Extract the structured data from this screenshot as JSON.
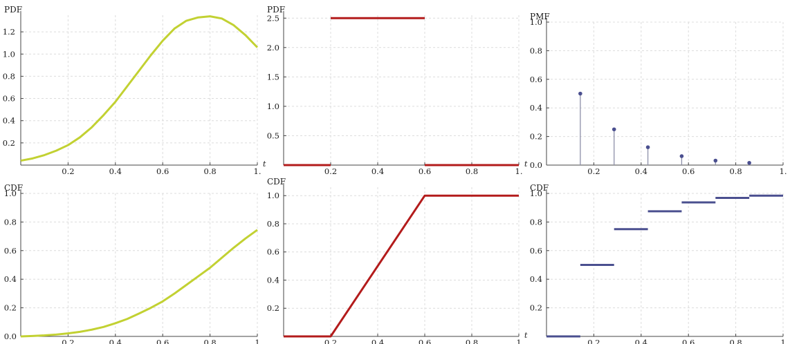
{
  "colors": {
    "green": "#c2d132",
    "red": "#b31b1b",
    "blue": "#4a4f8f",
    "stem": "#8d8fa8"
  },
  "chart_data": [
    {
      "type": "line",
      "title": "PDF",
      "xlabel": "t",
      "xlim": [
        0,
        1
      ],
      "ylim": [
        0,
        1.35
      ],
      "xticks": [
        "0.2",
        "0.4",
        "0.6",
        "0.8",
        "1."
      ],
      "yticks": [
        "0.2",
        "0.4",
        "0.6",
        "0.8",
        "1.0",
        "1.2"
      ],
      "series": [
        {
          "color": "green",
          "x": [
            0,
            0.05,
            0.1,
            0.15,
            0.2,
            0.25,
            0.3,
            0.35,
            0.4,
            0.45,
            0.5,
            0.55,
            0.6,
            0.65,
            0.7,
            0.75,
            0.8,
            0.85,
            0.9,
            0.95,
            1.0
          ],
          "y": [
            0.04,
            0.06,
            0.09,
            0.13,
            0.18,
            0.25,
            0.34,
            0.45,
            0.57,
            0.71,
            0.85,
            0.99,
            1.12,
            1.23,
            1.3,
            1.33,
            1.34,
            1.32,
            1.26,
            1.17,
            1.06
          ]
        }
      ]
    },
    {
      "type": "line",
      "title": "PDF",
      "xlabel": "t",
      "xlim": [
        0,
        1
      ],
      "ylim": [
        0,
        2.55
      ],
      "xticks": [
        "0.2",
        "0.4",
        "0.6",
        "0.8",
        "1."
      ],
      "yticks": [
        "0.5",
        "1.0",
        "1.5",
        "2.0",
        "2.5"
      ],
      "series": [
        {
          "color": "red",
          "x": [
            0,
            0.2
          ],
          "y": [
            0,
            0
          ]
        },
        {
          "color": "red",
          "x": [
            0.2,
            0.6
          ],
          "y": [
            2.5,
            2.5
          ]
        },
        {
          "color": "red",
          "x": [
            0.6,
            1.0
          ],
          "y": [
            0,
            0
          ]
        }
      ]
    },
    {
      "type": "stem",
      "title": "PMF",
      "xlim": [
        0,
        1
      ],
      "ylim": [
        0,
        1.0
      ],
      "xticks": [
        "0.2",
        "0.4",
        "0.6",
        "0.8",
        "1."
      ],
      "yticks": [
        "0.0",
        "0.2",
        "0.4",
        "0.6",
        "0.8",
        "1.0"
      ],
      "series": [
        {
          "color": "blue",
          "x": [
            0.1429,
            0.2857,
            0.4286,
            0.5714,
            0.7143,
            0.8571
          ],
          "y": [
            0.5,
            0.25,
            0.125,
            0.0625,
            0.03125,
            0.015625
          ]
        }
      ]
    },
    {
      "type": "line",
      "title": "CDF",
      "xlim": [
        0,
        1
      ],
      "ylim": [
        0,
        1.0
      ],
      "xticks": [
        "0.2",
        "0.4",
        "0.6",
        "0.8",
        "1"
      ],
      "yticks": [
        "0.0",
        "0.2",
        "0.4",
        "0.6",
        "0.8",
        "1.0"
      ],
      "series": [
        {
          "color": "green",
          "x": [
            0,
            0.05,
            0.1,
            0.15,
            0.2,
            0.25,
            0.3,
            0.35,
            0.4,
            0.45,
            0.5,
            0.55,
            0.6,
            0.65,
            0.7,
            0.75,
            0.8,
            0.85,
            0.9,
            0.95,
            1.0
          ],
          "y": [
            0,
            0.003,
            0.007,
            0.013,
            0.021,
            0.032,
            0.047,
            0.066,
            0.092,
            0.122,
            0.16,
            0.2,
            0.245,
            0.3,
            0.36,
            0.42,
            0.48,
            0.55,
            0.62,
            0.685,
            0.745
          ]
        }
      ]
    },
    {
      "type": "line",
      "title": "CDF",
      "xlabel": "t",
      "xlim": [
        0,
        1
      ],
      "ylim": [
        0,
        1.06
      ],
      "xticks": [
        "0.2",
        "0.4",
        "0.6",
        "0.8",
        "1"
      ],
      "yticks": [
        "0.2",
        "0.4",
        "0.6",
        "0.8",
        "1.0"
      ],
      "series": [
        {
          "color": "red",
          "x": [
            0,
            0.2,
            0.6,
            1.0
          ],
          "y": [
            0,
            0,
            1,
            1
          ]
        }
      ]
    },
    {
      "type": "step",
      "title": "CDF",
      "xlim": [
        0,
        1
      ],
      "ylim": [
        0,
        1.0
      ],
      "xticks": [
        "0.2",
        "0.4",
        "0.6",
        "0.8",
        "1"
      ],
      "yticks": [
        "0.2",
        "0.4",
        "0.6",
        "0.8",
        "1.0"
      ],
      "series": [
        {
          "color": "blue",
          "x0": [
            0,
            0.1429,
            0.2857,
            0.4286,
            0.5714,
            0.7143,
            0.8571
          ],
          "x1": [
            0.1429,
            0.2857,
            0.4286,
            0.5714,
            0.7143,
            0.8571,
            1.0
          ],
          "y": [
            0,
            0.5,
            0.75,
            0.875,
            0.9375,
            0.96875,
            0.984375
          ]
        }
      ]
    }
  ]
}
